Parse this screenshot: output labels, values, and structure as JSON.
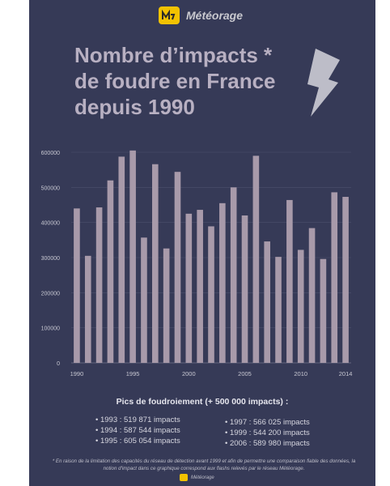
{
  "brand": {
    "name": "Météorage"
  },
  "title_lines": [
    "Nombre d’impacts *",
    "de foudre en France",
    "depuis 1990"
  ],
  "colors": {
    "background": "#363a57",
    "bar": "#a89aaa",
    "title": "#b8b0c2",
    "logo": "#f2c200",
    "bolt": "#bdbdc8"
  },
  "chart_data": {
    "type": "bar",
    "x": [
      1990,
      1991,
      1992,
      1993,
      1994,
      1995,
      1996,
      1997,
      1998,
      1999,
      2000,
      2001,
      2002,
      2003,
      2004,
      2005,
      2006,
      2007,
      2008,
      2009,
      2010,
      2011,
      2012,
      2013,
      2014
    ],
    "values": [
      440000,
      305000,
      443000,
      519871,
      587544,
      605054,
      357000,
      566025,
      326000,
      544200,
      425000,
      436000,
      389000,
      455000,
      500000,
      420000,
      589980,
      346000,
      302000,
      464000,
      322000,
      384000,
      296000,
      486000,
      473000
    ],
    "xtick_labels": [
      "1990",
      "1995",
      "2000",
      "2005",
      "2010",
      "2014"
    ],
    "ytick_labels": [
      "0",
      "100000",
      "200000",
      "300000",
      "400000",
      "500000",
      "600000"
    ],
    "ylim": [
      0,
      600000
    ],
    "grid": true
  },
  "peaks": {
    "title": "Pics de foudroiement (+ 500 000 impacts) :",
    "left": [
      "1993 : 519 871 impacts",
      "1994 : 587 544 impacts",
      "1995 : 605 054 impacts"
    ],
    "right": [
      "1997 : 566 025 impacts",
      "1999 : 544 200 impacts",
      "2006 : 589 980 impacts"
    ]
  },
  "footnote": "* En raison de la limitation des capacités du réseau de détection avant 1999 et afin de permettre une comparaison fiable des données, la notion d'impact dans ce graphique correspond aux flashs relevés par le réseau Météorage.",
  "footer_brand": "Météorage"
}
